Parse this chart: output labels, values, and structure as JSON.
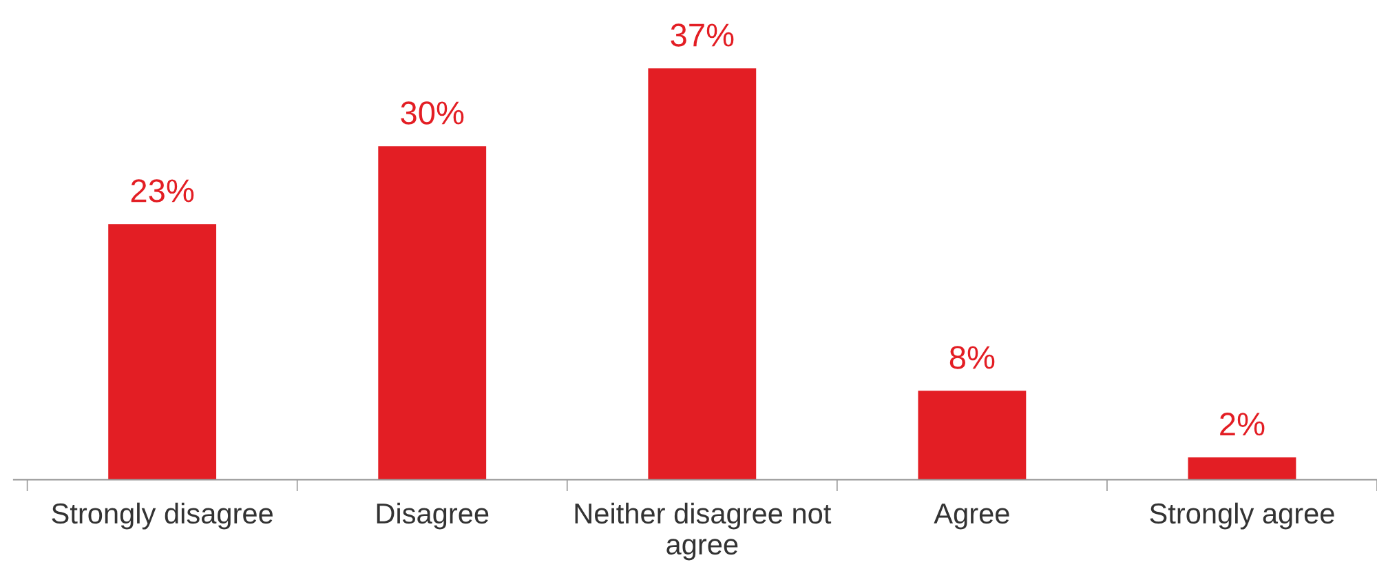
{
  "chart_data": {
    "type": "bar",
    "categories": [
      "Strongly disagree",
      "Disagree",
      "Neither disagree not agree",
      "Agree",
      "Strongly agree"
    ],
    "values": [
      23,
      30,
      37,
      8,
      2
    ],
    "value_labels": [
      "23%",
      "30%",
      "37%",
      "8%",
      "2%"
    ],
    "color": "#e31e24"
  }
}
